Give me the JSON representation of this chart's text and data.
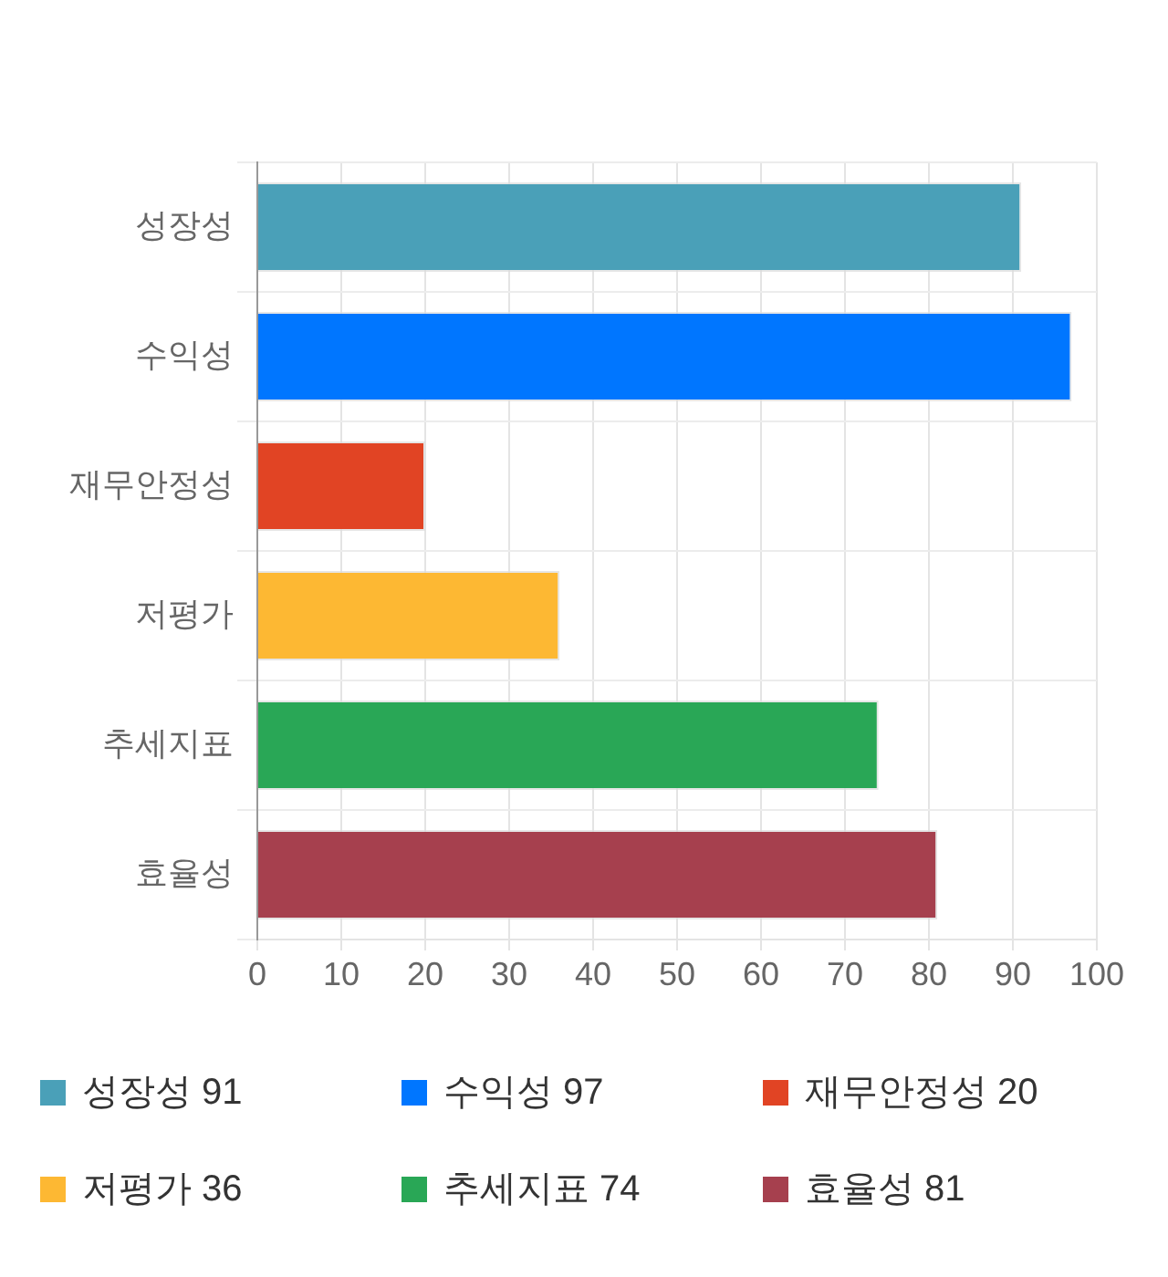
{
  "chart_data": {
    "type": "bar",
    "orientation": "horizontal",
    "categories": [
      "성장성",
      "수익성",
      "재무안정성",
      "저평가",
      "추세지표",
      "효율성"
    ],
    "series": [
      {
        "name": "성장성 91",
        "color": "#4aa0b8",
        "values": [
          91,
          null,
          null,
          null,
          null,
          null
        ]
      },
      {
        "name": "수익성 97",
        "color": "#0076ff",
        "values": [
          null,
          97,
          null,
          null,
          null,
          null
        ]
      },
      {
        "name": "재무안정성 20",
        "color": "#e14424",
        "values": [
          null,
          null,
          20,
          null,
          null,
          null
        ]
      },
      {
        "name": "저평가 36",
        "color": "#fdb833",
        "values": [
          null,
          null,
          null,
          36,
          null,
          null
        ]
      },
      {
        "name": "추세지표 74",
        "color": "#29a756",
        "values": [
          null,
          null,
          null,
          null,
          74,
          null
        ]
      },
      {
        "name": "효율성 81",
        "color": "#a6404e",
        "values": [
          null,
          null,
          null,
          null,
          null,
          81
        ]
      }
    ],
    "xlim": [
      0,
      100
    ],
    "xticks": [
      0,
      10,
      20,
      30,
      40,
      50,
      60,
      70,
      80,
      90,
      100
    ],
    "grid": true,
    "legend": "bottom"
  }
}
